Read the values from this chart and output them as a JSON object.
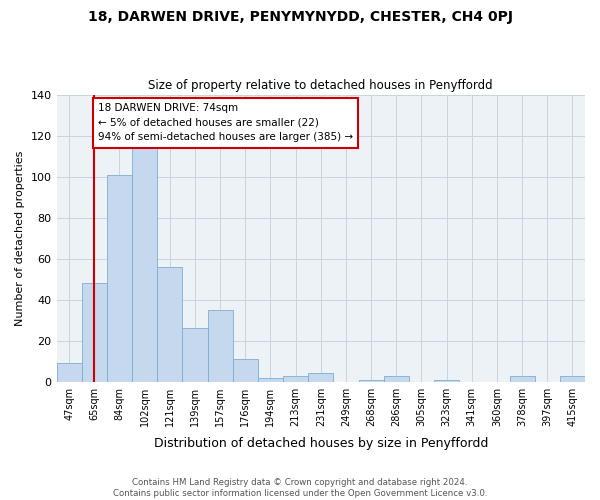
{
  "title": "18, DARWEN DRIVE, PENYMYNYDD, CHESTER, CH4 0PJ",
  "subtitle": "Size of property relative to detached houses in Penyffordd",
  "xlabel": "Distribution of detached houses by size in Penyffordd",
  "ylabel": "Number of detached properties",
  "categories": [
    "47sqm",
    "65sqm",
    "84sqm",
    "102sqm",
    "121sqm",
    "139sqm",
    "157sqm",
    "176sqm",
    "194sqm",
    "213sqm",
    "231sqm",
    "249sqm",
    "268sqm",
    "286sqm",
    "305sqm",
    "323sqm",
    "341sqm",
    "360sqm",
    "378sqm",
    "397sqm",
    "415sqm"
  ],
  "values": [
    9,
    48,
    101,
    115,
    56,
    26,
    35,
    11,
    2,
    3,
    4,
    0,
    1,
    3,
    0,
    1,
    0,
    0,
    3,
    0,
    3
  ],
  "bar_color": "#c5d8ed",
  "bar_edge_color": "#7aafd4",
  "vline_x": 1,
  "vline_color": "#cc0000",
  "annotation_text": "18 DARWEN DRIVE: 74sqm\n← 5% of detached houses are smaller (22)\n94% of semi-detached houses are larger (385) →",
  "annotation_box_edge": "#cc0000",
  "ylim": [
    0,
    140
  ],
  "yticks": [
    0,
    20,
    40,
    60,
    80,
    100,
    120,
    140
  ],
  "grid_color": "#c8d4e0",
  "background_color": "#edf2f7",
  "footer": "Contains HM Land Registry data © Crown copyright and database right 2024.\nContains public sector information licensed under the Open Government Licence v3.0."
}
